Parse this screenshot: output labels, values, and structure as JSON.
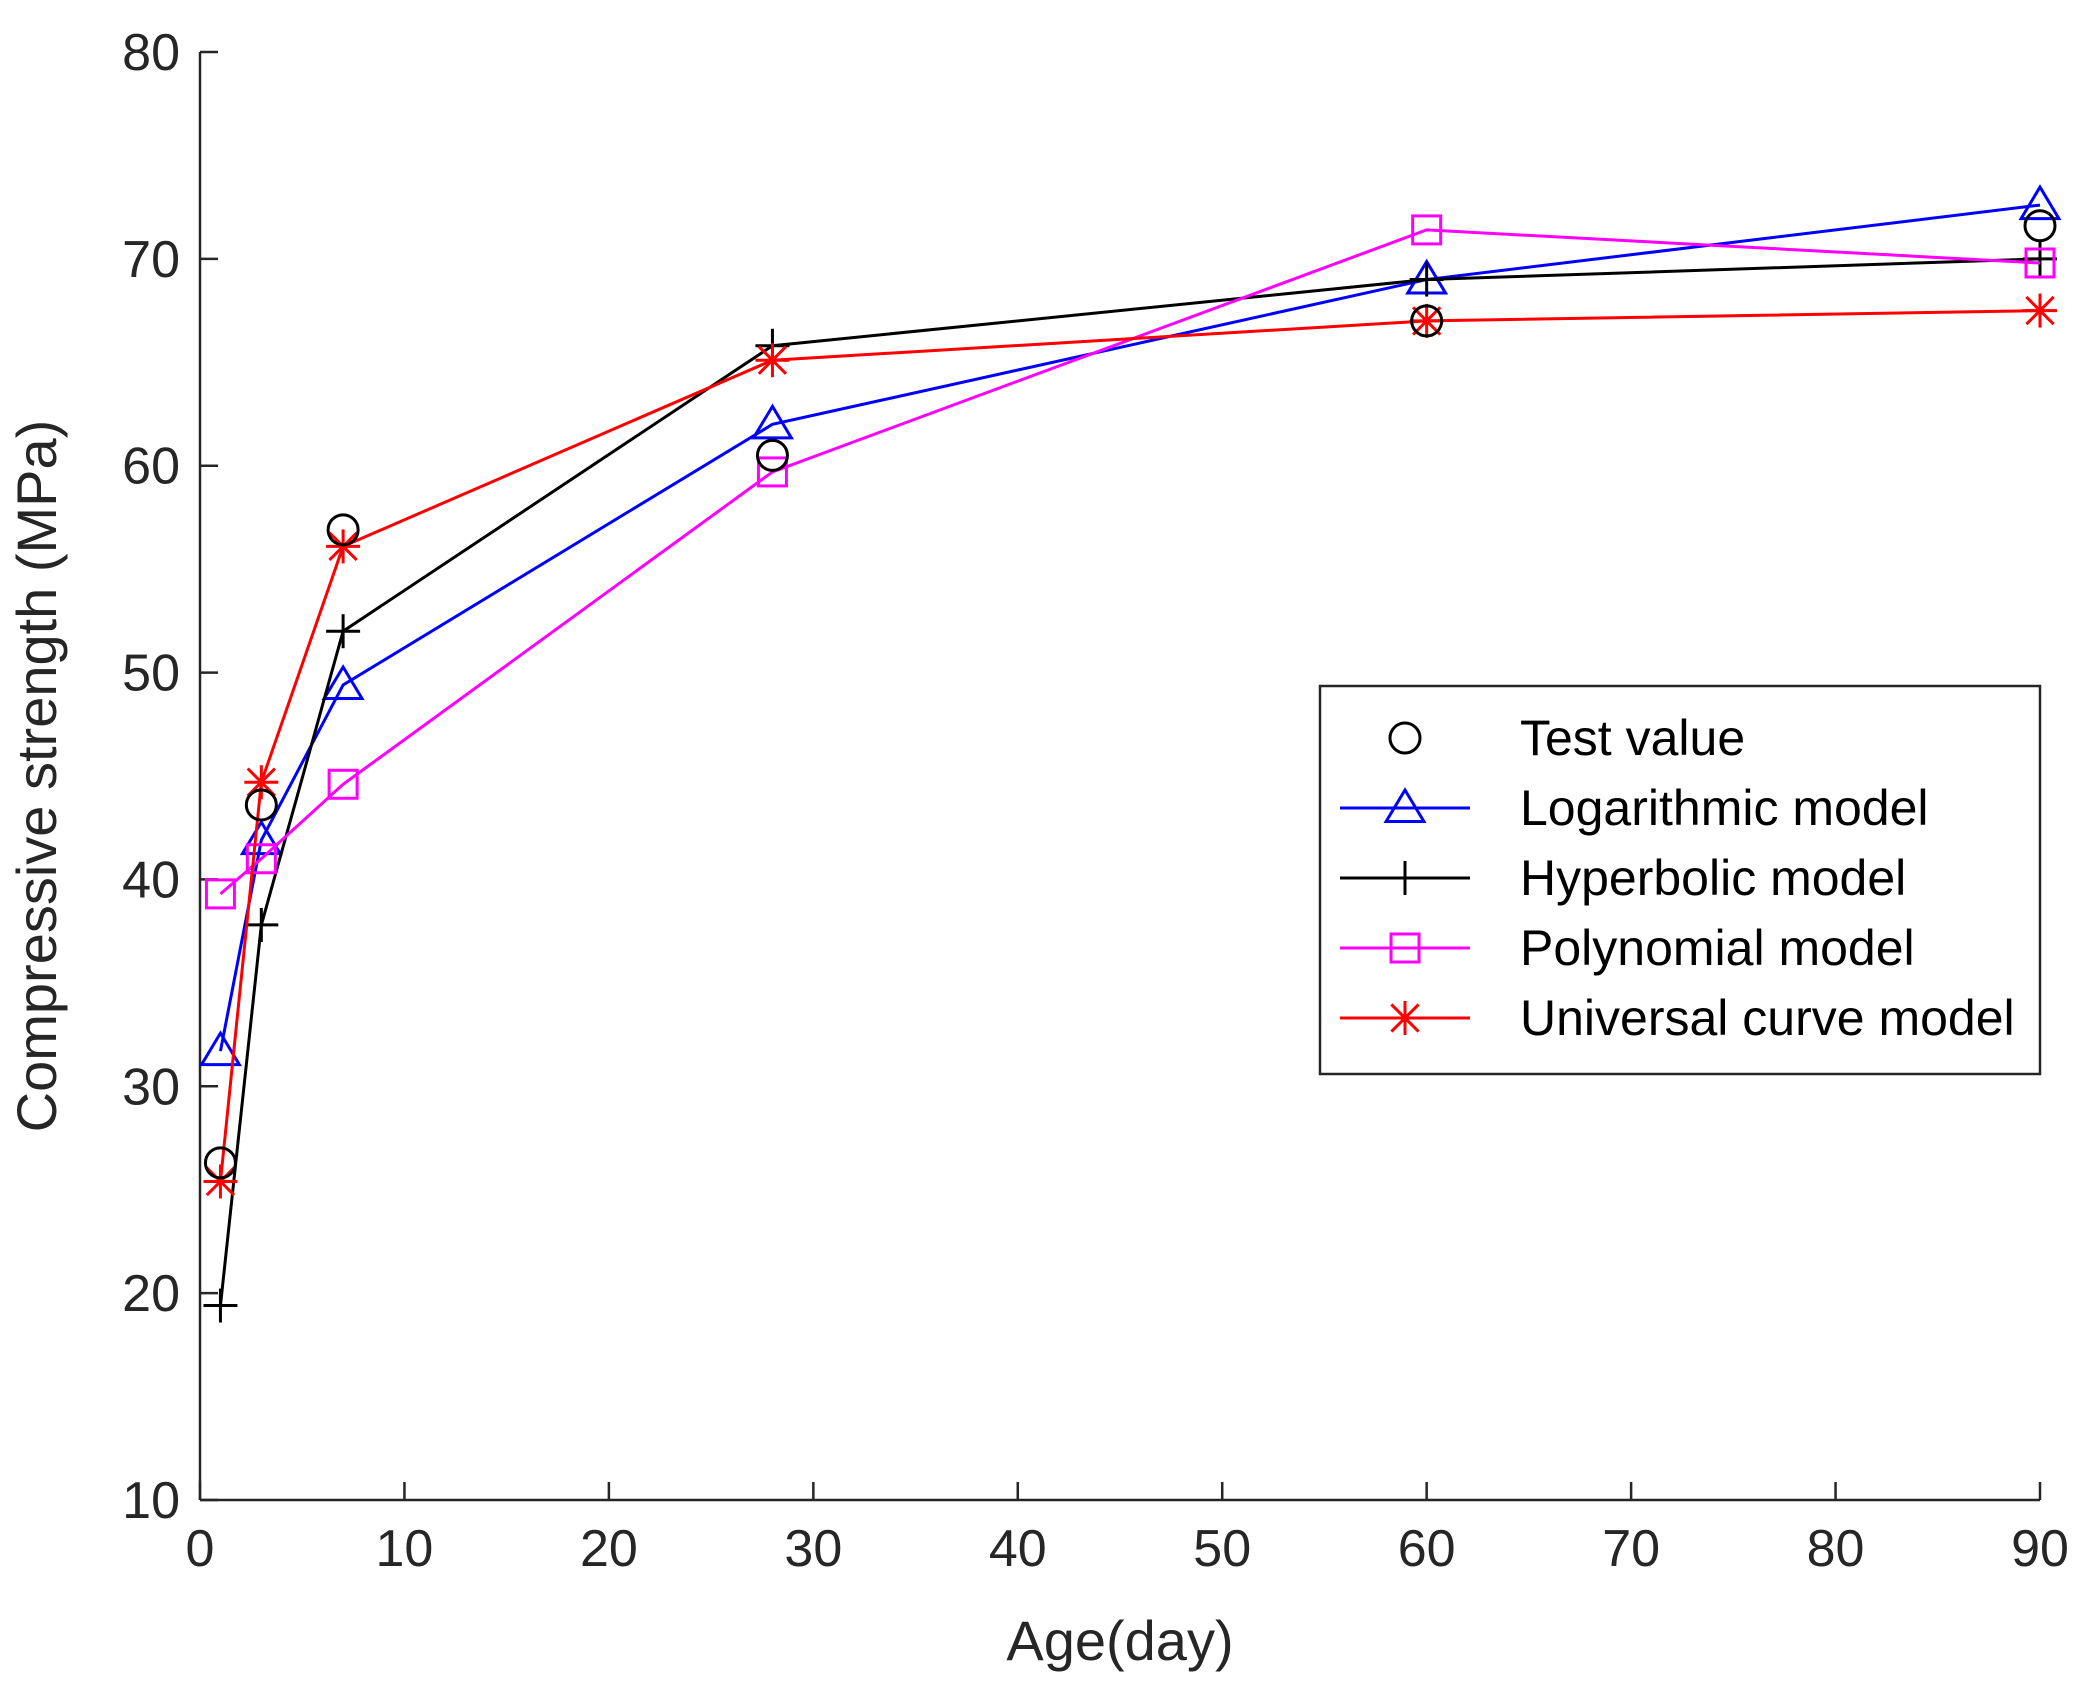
{
  "chart_data": {
    "type": "line",
    "title": "",
    "xlabel": "Age(day)",
    "ylabel": "Compressive strength (MPa)",
    "xlim": [
      0,
      90
    ],
    "ylim": [
      10,
      80
    ],
    "xticks": [
      0,
      10,
      20,
      30,
      40,
      50,
      60,
      70,
      80,
      90
    ],
    "yticks": [
      10,
      20,
      30,
      40,
      50,
      60,
      70,
      80
    ],
    "grid": false,
    "legend_position": "center-right",
    "x": [
      1,
      3,
      7,
      28,
      60,
      90
    ],
    "series": [
      {
        "name": "Test value",
        "marker": "circle",
        "line": false,
        "color": "#000000",
        "values": [
          26.3,
          43.6,
          56.9,
          60.5,
          67.0,
          71.6
        ]
      },
      {
        "name": "Logarithmic model",
        "marker": "triangle",
        "line": true,
        "color": "#0000ff",
        "values": [
          31.7,
          41.9,
          49.4,
          62.0,
          69.0,
          72.6
        ]
      },
      {
        "name": "Hyperbolic model",
        "marker": "plus",
        "line": true,
        "color": "#000000",
        "values": [
          19.4,
          37.8,
          52.0,
          65.8,
          69.0,
          70.0
        ]
      },
      {
        "name": "Polynomial model",
        "marker": "square",
        "line": true,
        "color": "#ff00ff",
        "values": [
          39.3,
          41.0,
          44.6,
          59.7,
          71.4,
          69.8
        ]
      },
      {
        "name": "Universal curve model",
        "marker": "asterisk",
        "line": true,
        "color": "#ff0000",
        "values": [
          25.4,
          44.7,
          56.1,
          65.1,
          67.0,
          67.5
        ]
      }
    ]
  }
}
